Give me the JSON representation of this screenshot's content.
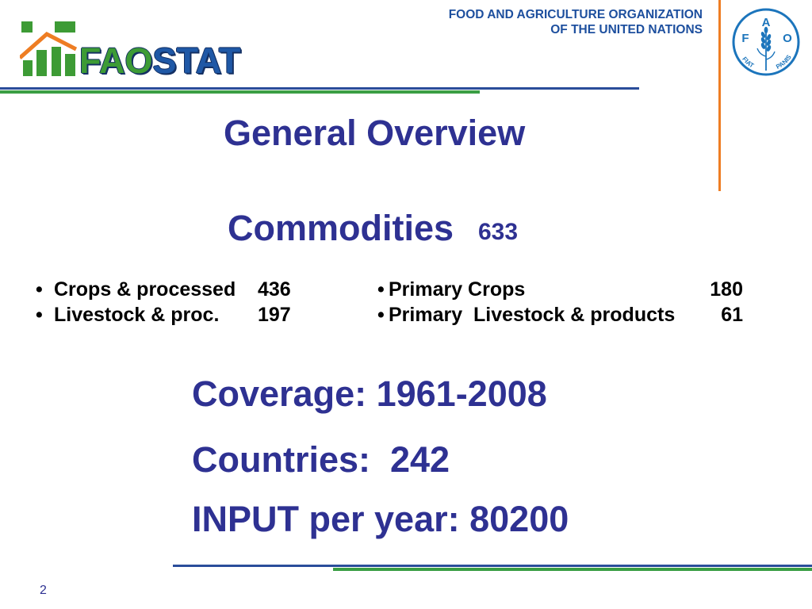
{
  "logo": {
    "wordmark_fao": "FAO",
    "wordmark_stat": "STAT"
  },
  "organization": {
    "line1": "FOOD AND AGRICULTURE ORGANIZATION",
    "line2": "OF THE UNITED NATIONS"
  },
  "emblem": {
    "letter_f": "F",
    "letter_a": "A",
    "letter_o": "O",
    "motto_left": "FIAT",
    "motto_right": "PANIS"
  },
  "slide": {
    "title": "General Overview",
    "commodities": {
      "label": "Commodities",
      "total": "633"
    },
    "bullet_glyph": "•",
    "left_list": [
      {
        "label": "Crops & processed",
        "value": "436"
      },
      {
        "label": "Livestock & proc.",
        "value": "197"
      }
    ],
    "right_list": [
      {
        "label": "Primary Crops",
        "value": "180"
      },
      {
        "label": "Primary  Livestock & products",
        "value": "61"
      }
    ],
    "coverage": "Coverage: 1961-2008",
    "countries": "Countries:  242",
    "input_per_year": "INPUT per year: 80200"
  },
  "footer": {
    "page_number": "2"
  },
  "icons": {
    "logo_mark": "faostat-house-chart-icon",
    "emblem": "fao-emblem-icon",
    "wheat": "wheat-icon"
  },
  "colors": {
    "title": "#2e3192",
    "org_text": "#1d4f9e",
    "rule_blue": "#2a4d9a",
    "rule_green": "#3a9e44",
    "accent_orange": "#ee7d23",
    "emblem_blue": "#1c75bc",
    "logo_green": "#3d9b35",
    "logo_blue": "#1f58a6"
  }
}
